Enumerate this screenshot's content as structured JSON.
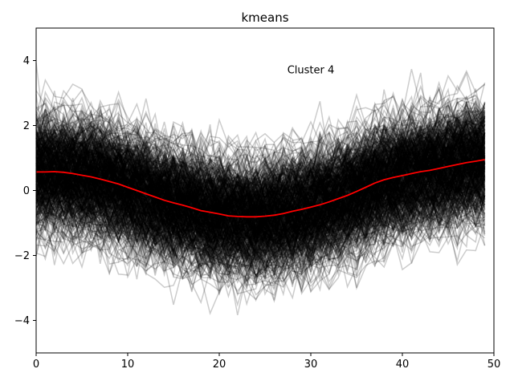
{
  "chart_data": {
    "type": "line",
    "title": "kmeans",
    "xlabel": "",
    "ylabel": "",
    "xlim": [
      0,
      50
    ],
    "ylim": [
      -5,
      5
    ],
    "xticks": [
      0,
      10,
      20,
      30,
      40,
      50
    ],
    "yticks": [
      -4,
      -2,
      0,
      2,
      4
    ],
    "grid": false,
    "annotation": {
      "text": "Cluster 4",
      "x": 30,
      "y": 3.6
    },
    "individual_series": {
      "description_count": 600,
      "color": "#000000",
      "opacity": 0.2
    },
    "mean_series": {
      "color": "#ff0000",
      "x": [
        0,
        1,
        2,
        3,
        4,
        5,
        6,
        7,
        8,
        9,
        10,
        11,
        12,
        13,
        14,
        15,
        16,
        17,
        18,
        19,
        20,
        21,
        22,
        23,
        24,
        25,
        26,
        27,
        28,
        29,
        30,
        31,
        32,
        33,
        34,
        35,
        36,
        37,
        38,
        39,
        40,
        41,
        42,
        43,
        44,
        45,
        46,
        47,
        48,
        49
      ],
      "values": [
        0.57,
        0.57,
        0.58,
        0.56,
        0.52,
        0.47,
        0.42,
        0.35,
        0.28,
        0.2,
        0.1,
        0.0,
        -0.1,
        -0.2,
        -0.3,
        -0.38,
        -0.45,
        -0.53,
        -0.62,
        -0.67,
        -0.72,
        -0.78,
        -0.8,
        -0.81,
        -0.81,
        -0.79,
        -0.76,
        -0.71,
        -0.64,
        -0.58,
        -0.51,
        -0.44,
        -0.35,
        -0.25,
        -0.15,
        -0.03,
        0.1,
        0.23,
        0.33,
        0.4,
        0.46,
        0.52,
        0.58,
        0.62,
        0.68,
        0.74,
        0.8,
        0.86,
        0.9,
        0.95
      ]
    }
  }
}
